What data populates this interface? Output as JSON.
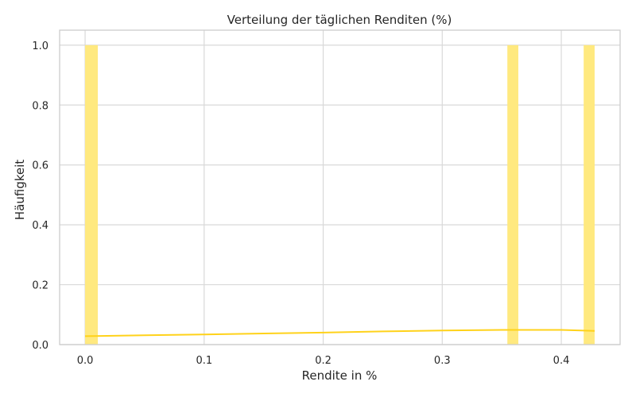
{
  "chart_data": {
    "type": "bar",
    "title": "Verteilung der täglichen Renditen (%)",
    "xlabel": "Rendite in %",
    "ylabel": "Häufigkeit",
    "xlim": [
      -0.0214,
      0.4494
    ],
    "ylim": [
      0,
      1.05
    ],
    "xticks": [
      {
        "value": 0.0,
        "label": "0.0"
      },
      {
        "value": 0.1,
        "label": "0.1"
      },
      {
        "value": 0.2,
        "label": "0.2"
      },
      {
        "value": 0.3,
        "label": "0.3"
      },
      {
        "value": 0.4,
        "label": "0.4"
      }
    ],
    "yticks": [
      {
        "value": 0.0,
        "label": "0.0"
      },
      {
        "value": 0.2,
        "label": "0.2"
      },
      {
        "value": 0.4,
        "label": "0.4"
      },
      {
        "value": 0.6,
        "label": "0.6"
      },
      {
        "value": 0.8,
        "label": "0.8"
      },
      {
        "value": 1.0,
        "label": "1.0"
      }
    ],
    "grid": true,
    "bars": [
      {
        "x0": 0.0,
        "x1": 0.0107,
        "value": 1
      },
      {
        "x0": 0.3547,
        "x1": 0.3639,
        "value": 1
      },
      {
        "x0": 0.4188,
        "x1": 0.428,
        "value": 1
      }
    ],
    "kde": {
      "x": [
        0.0,
        0.05,
        0.1,
        0.15,
        0.2,
        0.25,
        0.3,
        0.35,
        0.4,
        0.428
      ],
      "y": [
        0.028,
        0.031,
        0.034,
        0.037,
        0.04,
        0.044,
        0.047,
        0.049,
        0.049,
        0.046
      ]
    },
    "colors": {
      "bar": "#ffe97f",
      "line": "#ffd21a",
      "grid": "#d9d9d9",
      "spine": "#cccccc"
    }
  }
}
